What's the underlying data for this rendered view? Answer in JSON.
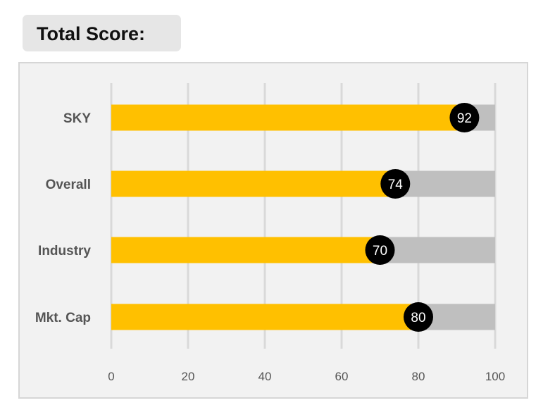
{
  "title": "Total Score:",
  "chart_data": {
    "type": "bar",
    "orientation": "horizontal",
    "categories": [
      "SKY",
      "Overall",
      "Industry",
      "Mkt. Cap"
    ],
    "values": [
      92,
      74,
      70,
      80
    ],
    "xlim": [
      0,
      100
    ],
    "xticks": [
      0,
      20,
      40,
      60,
      80,
      100
    ],
    "grid": true,
    "colors": {
      "bar": "#ffc000",
      "track": "#bfbfbf",
      "marker": "#000000",
      "grid": "#d9d9d9"
    }
  }
}
